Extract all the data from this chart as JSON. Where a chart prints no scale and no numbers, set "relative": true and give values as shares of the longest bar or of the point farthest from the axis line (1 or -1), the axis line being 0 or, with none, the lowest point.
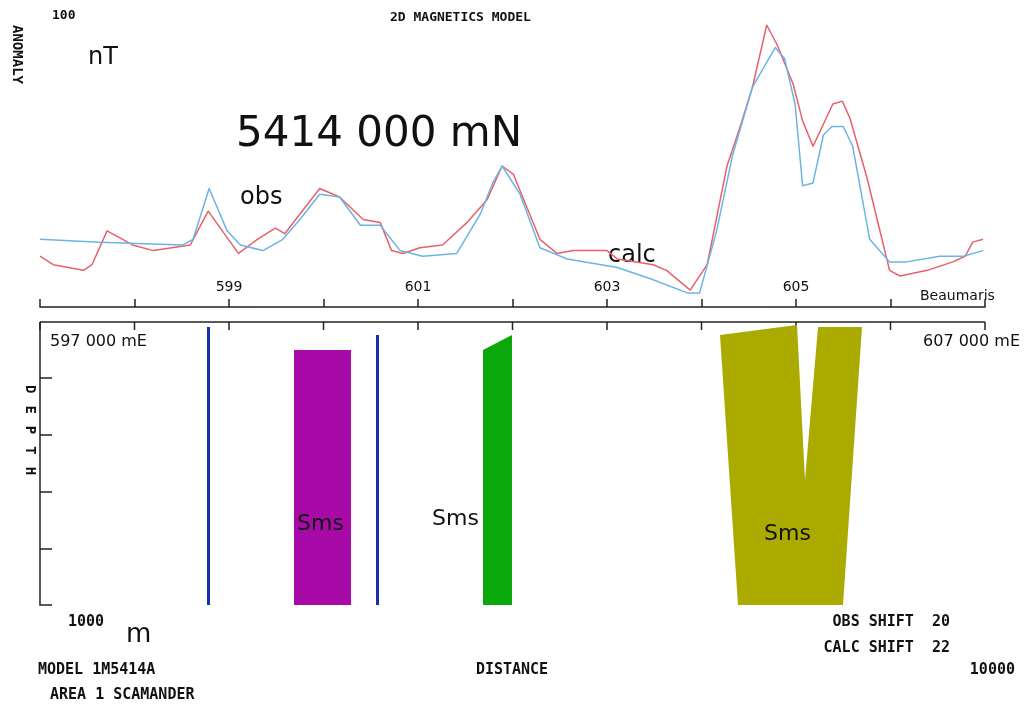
{
  "chart_data": [
    {
      "type": "line",
      "title": "2D MAGNETICS MODEL",
      "ylabel": "ANOMALY",
      "relative": true,
      "xlim": [
        597,
        607
      ],
      "xticks": [
        {
          "value": 597,
          "label": null
        },
        {
          "value": 598,
          "label": null
        },
        599,
        {
          "value": 600,
          "label": null
        },
        601,
        {
          "value": 602,
          "label": null
        },
        603,
        {
          "value": 604,
          "label": null
        },
        605,
        {
          "value": 606,
          "label": null
        },
        {
          "value": 607,
          "label": null
        }
      ],
      "annotations": [
        "100",
        "nT",
        "5414 000 mN",
        "obs",
        "calc",
        "Beaumaris"
      ],
      "series": [
        {
          "color": "#e8606a",
          "x": [
            597.0,
            597.14,
            597.46,
            597.55,
            597.71,
            597.98,
            598.2,
            598.59,
            598.78,
            599.1,
            599.3,
            599.49,
            599.59,
            599.96,
            600.17,
            600.42,
            600.6,
            600.72,
            600.84,
            601.02,
            601.26,
            601.52,
            601.73,
            601.89,
            602.01,
            602.29,
            602.47,
            602.64,
            603.0,
            603.11,
            603.49,
            603.63,
            603.88,
            604.06,
            604.27,
            604.41,
            604.54,
            604.69,
            604.8,
            604.97,
            605.07,
            605.18,
            605.39,
            605.49,
            605.57,
            605.75,
            605.99,
            606.1,
            606.39,
            606.66,
            606.79,
            606.87,
            606.98
          ],
          "values": [
            0.18,
            0.15,
            0.13,
            0.15,
            0.27,
            0.22,
            0.2,
            0.22,
            0.34,
            0.19,
            0.24,
            0.28,
            0.26,
            0.42,
            0.39,
            0.31,
            0.3,
            0.2,
            0.19,
            0.21,
            0.22,
            0.3,
            0.38,
            0.5,
            0.47,
            0.24,
            0.19,
            0.2,
            0.2,
            0.17,
            0.15,
            0.13,
            0.06,
            0.15,
            0.5,
            0.64,
            0.78,
            1.0,
            0.93,
            0.79,
            0.66,
            0.57,
            0.72,
            0.73,
            0.67,
            0.46,
            0.13,
            0.11,
            0.13,
            0.16,
            0.18,
            0.23,
            0.24
          ]
        },
        {
          "color": "#6cb4e4",
          "x": [
            597.0,
            597.63,
            598.51,
            598.62,
            598.79,
            598.98,
            599.12,
            599.36,
            599.57,
            599.75,
            599.96,
            600.17,
            600.39,
            600.6,
            600.81,
            601.05,
            601.41,
            601.66,
            601.79,
            601.89,
            602.08,
            602.29,
            602.58,
            603.11,
            603.46,
            603.85,
            603.98,
            604.16,
            604.33,
            604.54,
            604.78,
            604.88,
            604.99,
            605.07,
            605.18,
            605.29,
            605.38,
            605.5,
            605.6,
            605.78,
            605.99,
            606.17,
            606.52,
            606.77,
            606.98
          ],
          "values": [
            0.24,
            0.23,
            0.22,
            0.24,
            0.42,
            0.27,
            0.22,
            0.2,
            0.24,
            0.31,
            0.4,
            0.39,
            0.29,
            0.29,
            0.2,
            0.18,
            0.19,
            0.33,
            0.44,
            0.5,
            0.4,
            0.21,
            0.17,
            0.14,
            0.1,
            0.05,
            0.05,
            0.27,
            0.54,
            0.78,
            0.92,
            0.88,
            0.72,
            0.43,
            0.44,
            0.61,
            0.64,
            0.64,
            0.57,
            0.24,
            0.16,
            0.16,
            0.18,
            0.18,
            0.2
          ]
        }
      ]
    },
    {
      "type": "other",
      "xlabel": "DISTANCE",
      "ylabel": "DEPTH",
      "annotations": [
        "597 000 mE",
        "607 000 mE",
        "Sms",
        "Sms",
        "Sms",
        "1000",
        "m",
        "OBS SHIFT  20",
        "CALC SHIFT  22",
        "MODEL 1M5414A",
        "AREA 1 SCAMANDER",
        "10000"
      ]
    }
  ]
}
